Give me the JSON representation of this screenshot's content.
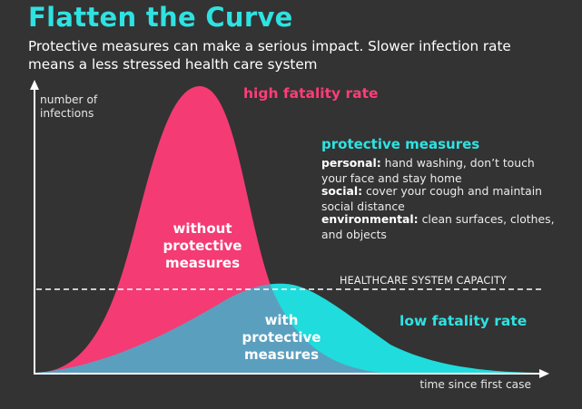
{
  "header": {
    "title": "Flatten the Curve",
    "subtitle": "Protective measures can make a serious impact. Slower infection rate means a less stressed health care system"
  },
  "axes": {
    "y_label": "number of\ninfections",
    "x_label": "time since first case"
  },
  "capacity_line": {
    "label": "HEALTHCARE SYSTEM CAPACITY"
  },
  "curves": {
    "without": {
      "label": "without\nprotective\nmeasures",
      "fatality_label": "high fatality rate",
      "color": "#f43b74"
    },
    "with": {
      "label": "with\nprotective\nmeasures",
      "fatality_label": "low fatality rate",
      "color": "#20dcdc",
      "overlap_color": "#5b9fbf"
    }
  },
  "protective_measures": {
    "title": "protective measures",
    "items": [
      {
        "name": "personal:",
        "text": "hand washing, don’t touch your face and stay home"
      },
      {
        "name": "social:",
        "text": "cover your cough and maintain social distance"
      },
      {
        "name": "environmental:",
        "text": "clean surfaces, clothes, and objects"
      }
    ]
  },
  "colors": {
    "background": "#333333",
    "accent_cyan": "#2fe2e2",
    "accent_pink": "#ff3d77"
  }
}
